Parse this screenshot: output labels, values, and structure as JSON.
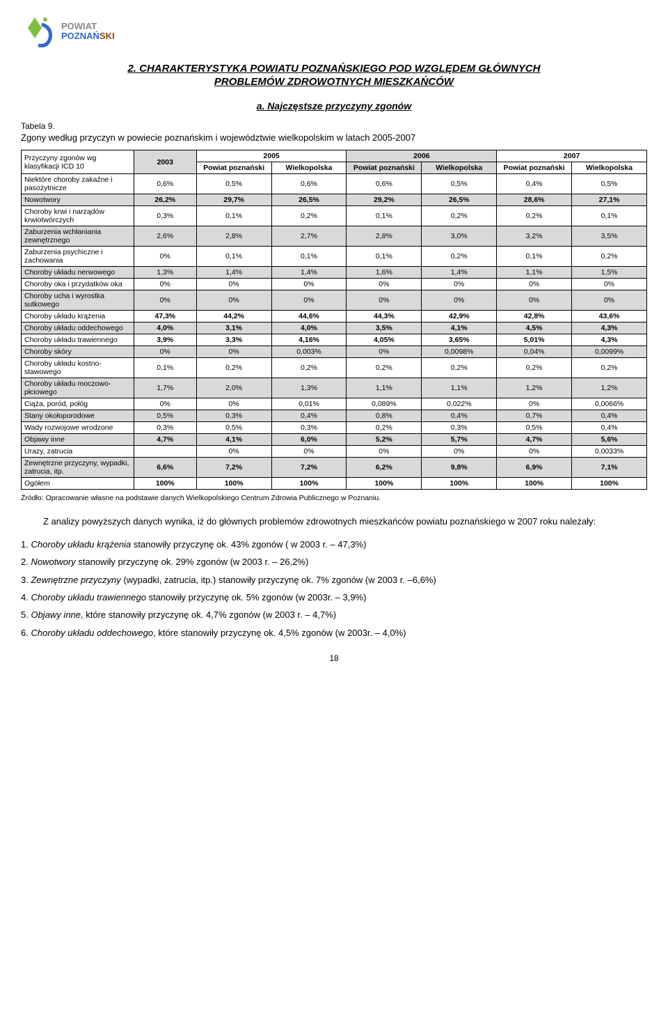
{
  "logo": {
    "line1": "POWIAT",
    "line2a": "POZNAŃ",
    "line2b": "SKI"
  },
  "heading": {
    "title": "2. CHARAKTERYSTYKA POWIATU POZNAŃSKIEGO POD WZGLĘDEM GŁÓWNYCH",
    "subtitle": "PROBLEMÓW ZDROWOTNYCH MIESZKAŃCÓW",
    "section_sub": "a. Najczęstsze przyczyny zgonów"
  },
  "table": {
    "label": "Tabela 9.",
    "caption": "Zgony według przyczyn w powiecie poznańskim i województwie wielkopolskim w latach 2005-2007",
    "corner": "Przyczyny zgonów wg klasyfikacji ICD 10",
    "years": [
      "2003",
      "2005",
      "2006",
      "2007"
    ],
    "subcols": {
      "pp": "Powiat poznański",
      "wk": "Wielkopolska"
    },
    "rows": [
      {
        "label": "Niektóre choroby zakaźne i pasożytnicze",
        "bold": false,
        "shade": false,
        "vals": [
          "0,6%",
          "0,5%",
          "0,6%",
          "0,6%",
          "0,5%",
          "0,4%",
          "0,5%"
        ]
      },
      {
        "label": "Nowotwory",
        "bold": true,
        "shade": true,
        "vals": [
          "26,2%",
          "29,7%",
          "26,5%",
          "29,2%",
          "26,5%",
          "28,6%",
          "27,1%"
        ]
      },
      {
        "label": "Choroby krwi i narządów krwiotwórczych",
        "bold": false,
        "shade": false,
        "vals": [
          "0,3%",
          "0,1%",
          "0,2%",
          "0,1%",
          "0,2%",
          "0,2%",
          "0,1%"
        ]
      },
      {
        "label": "Zaburzenia wchłaniania zewnętrznego",
        "bold": false,
        "shade": true,
        "vals": [
          "2,6%",
          "2,8%",
          "2,7%",
          "2,8%",
          "3,0%",
          "3,2%",
          "3,5%"
        ]
      },
      {
        "label": "Zaburzenia psychiczne i zachowania",
        "bold": false,
        "shade": false,
        "vals": [
          "0%",
          "0,1%",
          "0,1%",
          "0,1%",
          "0,2%",
          "0,1%",
          "0,2%"
        ]
      },
      {
        "label": "Choroby układu nerwowego",
        "bold": false,
        "shade": true,
        "vals": [
          "1,3%",
          "1,4%",
          "1,4%",
          "1,6%",
          "1,4%",
          "1,1%",
          "1,5%"
        ]
      },
      {
        "label": "Choroby oka i przydatków oka",
        "bold": false,
        "shade": false,
        "vals": [
          "0%",
          "0%",
          "0%",
          "0%",
          "0%",
          "0%",
          "0%"
        ]
      },
      {
        "label": "Choroby ucha i wyrostka sutkowego",
        "bold": false,
        "shade": true,
        "vals": [
          "0%",
          "0%",
          "0%",
          "0%",
          "0%",
          "0%",
          "0%"
        ]
      },
      {
        "label": "Choroby układu krążenia",
        "bold": true,
        "shade": false,
        "vals": [
          "47,3%",
          "44,2%",
          "44,6%",
          "44,3%",
          "42,9%",
          "42,8%",
          "43,6%"
        ]
      },
      {
        "label": "Choroby układu oddechowego",
        "bold": true,
        "shade": true,
        "vals": [
          "4,0%",
          "3,1%",
          "4,0%",
          "3,5%",
          "4,1%",
          "4,5%",
          "4,3%"
        ]
      },
      {
        "label": "Choroby układu trawiennego",
        "bold": true,
        "shade": false,
        "vals": [
          "3,9%",
          "3,3%",
          "4,16%",
          "4,05%",
          "3,65%",
          "5,01%",
          "4,3%"
        ]
      },
      {
        "label": "Choroby skóry",
        "bold": false,
        "shade": true,
        "vals": [
          "0%",
          "0%",
          "0,003%",
          "0%",
          "0,0098%",
          "0,04%",
          "0,0099%"
        ]
      },
      {
        "label": "Choroby układu kostno-stawowego",
        "bold": false,
        "shade": false,
        "vals": [
          "0,1%",
          "0,2%",
          "0,2%",
          "0,2%",
          "0,2%",
          "0,2%",
          "0,2%"
        ]
      },
      {
        "label": "Choroby układu moczowo-płciowego",
        "bold": false,
        "shade": true,
        "vals": [
          "1,7%",
          "2,0%",
          "1,3%",
          "1,1%",
          "1,1%",
          "1,2%",
          "1,2%"
        ]
      },
      {
        "label": "Ciąża, poród, połóg",
        "bold": false,
        "shade": false,
        "vals": [
          "0%",
          "0%",
          "0,01%",
          "0,089%",
          "0,022%",
          "0%",
          "0,0066%"
        ]
      },
      {
        "label": "Stany okołoporodowe",
        "bold": false,
        "shade": true,
        "vals": [
          "0,5%",
          "0,3%",
          "0,4%",
          "0,8%",
          "0,4%",
          "0,7%",
          "0,4%"
        ]
      },
      {
        "label": "Wady rozwojowe wrodzone",
        "bold": false,
        "shade": false,
        "vals": [
          "0,3%",
          "0,5%",
          "0,3%",
          "0,2%",
          "0,3%",
          "0,5%",
          "0,4%"
        ]
      },
      {
        "label": "Objawy inne",
        "bold": true,
        "shade": true,
        "vals": [
          "4,7%",
          "4,1%",
          "6,0%",
          "5,2%",
          "5,7%",
          "4,7%",
          "5,6%"
        ]
      },
      {
        "label": "Urazy, zatrucia",
        "bold": false,
        "shade": false,
        "vals": [
          "",
          "0%",
          "0%",
          "0%",
          "0%",
          "0%",
          "0,0033%"
        ]
      },
      {
        "label": "Zewnętrzne przyczyny, wypadki, zatrucia, itp.",
        "bold": true,
        "shade": true,
        "vals": [
          "6,6%",
          "7,2%",
          "7,2%",
          "6,2%",
          "9,8%",
          "6,9%",
          "7,1%"
        ]
      },
      {
        "label": "Ogółem",
        "bold": true,
        "shade": false,
        "vals": [
          "100%",
          "100%",
          "100%",
          "100%",
          "100%",
          "100%",
          "100%"
        ]
      }
    ],
    "col_widths": [
      "18%",
      "10%",
      "12%",
      "12%",
      "12%",
      "12%",
      "12%",
      "12%"
    ]
  },
  "source": "Źródło: Opracowanie własne na podstawie danych Wielkopolskiego Centrum Zdrowia Publicznego w Poznaniu.",
  "paragraph": "Z analizy powyższych danych wynika, iż do głównych problemów zdrowotnych mieszkańców powiatu poznańskiego w 2007 roku należały:",
  "findings": [
    {
      "n": "1.",
      "it": "Choroby układu krążenia",
      "rest": " stanowiły przyczynę ok. 43% zgonów ( w 2003 r. – 47,3%)"
    },
    {
      "n": "2.",
      "it": "Nowotwory",
      "rest": " stanowiły przyczynę ok. 29% zgonów (w 2003 r. – 26,2%)"
    },
    {
      "n": "3.",
      "it": "Zewnętrzne przyczyny",
      "rest": " (wypadki, zatrucia, itp.) stanowiły przyczynę ok. 7% zgonów (w 2003 r. –6,6%)"
    },
    {
      "n": "4.",
      "it": "Choroby układu trawiennego",
      "rest": " stanowiły przyczynę ok. 5% zgonów (w 2003r. – 3,9%)"
    },
    {
      "n": "5.",
      "it": "Objawy inne",
      "rest": ", które stanowiły przyczynę ok. 4,7%  zgonów (w 2003 r. – 4,7%)"
    },
    {
      "n": "6.",
      "it": "Choroby układu oddechowego",
      "rest": ", które stanowiły przyczynę ok. 4,5% zgonów (w 2003r. – 4,0%)"
    }
  ],
  "page_number": "18"
}
